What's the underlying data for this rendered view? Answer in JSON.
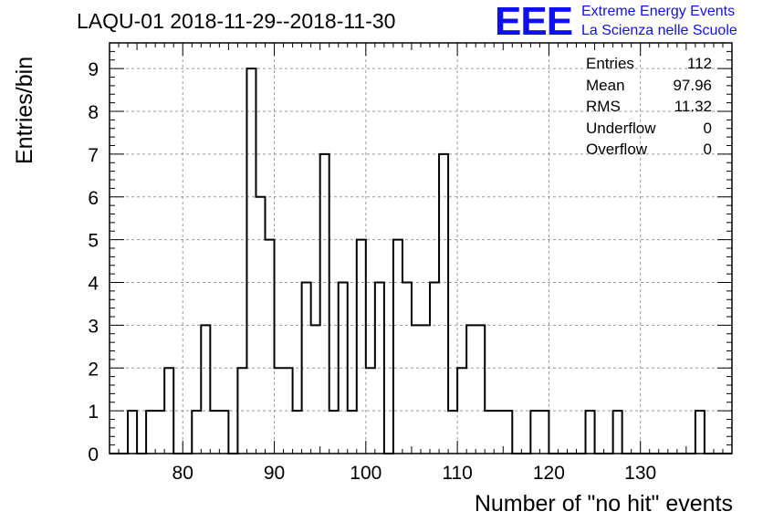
{
  "title": "LAQU-01 2018-11-29--2018-11-30",
  "logo": {
    "mark": "EEE",
    "line1": "Extreme Energy Events",
    "line2": "La Scienza nelle Scuole",
    "color": "#1010ee"
  },
  "stats": [
    {
      "name": "Entries",
      "value": "112"
    },
    {
      "name": "Mean",
      "value": "97.96"
    },
    {
      "name": "RMS",
      "value": "11.32"
    },
    {
      "name": "Underflow",
      "value": "0"
    },
    {
      "name": "Overflow",
      "value": "0"
    }
  ],
  "chart_data": {
    "type": "bar",
    "histogram": true,
    "xlabel": "Number of \"no hit\" events",
    "ylabel": "Entries/bin",
    "xlim": [
      72,
      140
    ],
    "ylim": [
      0,
      9.6
    ],
    "xticks": [
      80,
      90,
      100,
      110,
      120,
      130
    ],
    "yticks": [
      0,
      1,
      2,
      3,
      4,
      5,
      6,
      7,
      8,
      9
    ],
    "grid": true,
    "bin_width": 1,
    "bins": [
      {
        "x": 74,
        "y": 1
      },
      {
        "x": 76,
        "y": 1
      },
      {
        "x": 77,
        "y": 1
      },
      {
        "x": 78,
        "y": 2
      },
      {
        "x": 81,
        "y": 1
      },
      {
        "x": 82,
        "y": 3
      },
      {
        "x": 83,
        "y": 1
      },
      {
        "x": 84,
        "y": 1
      },
      {
        "x": 86,
        "y": 2
      },
      {
        "x": 87,
        "y": 9
      },
      {
        "x": 88,
        "y": 6
      },
      {
        "x": 89,
        "y": 5
      },
      {
        "x": 90,
        "y": 2
      },
      {
        "x": 91,
        "y": 2
      },
      {
        "x": 92,
        "y": 1
      },
      {
        "x": 93,
        "y": 4
      },
      {
        "x": 94,
        "y": 3
      },
      {
        "x": 95,
        "y": 7
      },
      {
        "x": 96,
        "y": 1
      },
      {
        "x": 97,
        "y": 4
      },
      {
        "x": 98,
        "y": 1
      },
      {
        "x": 99,
        "y": 5
      },
      {
        "x": 100,
        "y": 2
      },
      {
        "x": 101,
        "y": 4
      },
      {
        "x": 103,
        "y": 5
      },
      {
        "x": 104,
        "y": 4
      },
      {
        "x": 105,
        "y": 3
      },
      {
        "x": 106,
        "y": 3
      },
      {
        "x": 107,
        "y": 4
      },
      {
        "x": 108,
        "y": 7
      },
      {
        "x": 109,
        "y": 1
      },
      {
        "x": 110,
        "y": 2
      },
      {
        "x": 111,
        "y": 3
      },
      {
        "x": 112,
        "y": 3
      },
      {
        "x": 113,
        "y": 1
      },
      {
        "x": 114,
        "y": 1
      },
      {
        "x": 115,
        "y": 1
      },
      {
        "x": 118,
        "y": 1
      },
      {
        "x": 119,
        "y": 1
      },
      {
        "x": 124,
        "y": 1
      },
      {
        "x": 127,
        "y": 1
      },
      {
        "x": 136,
        "y": 1
      }
    ]
  }
}
